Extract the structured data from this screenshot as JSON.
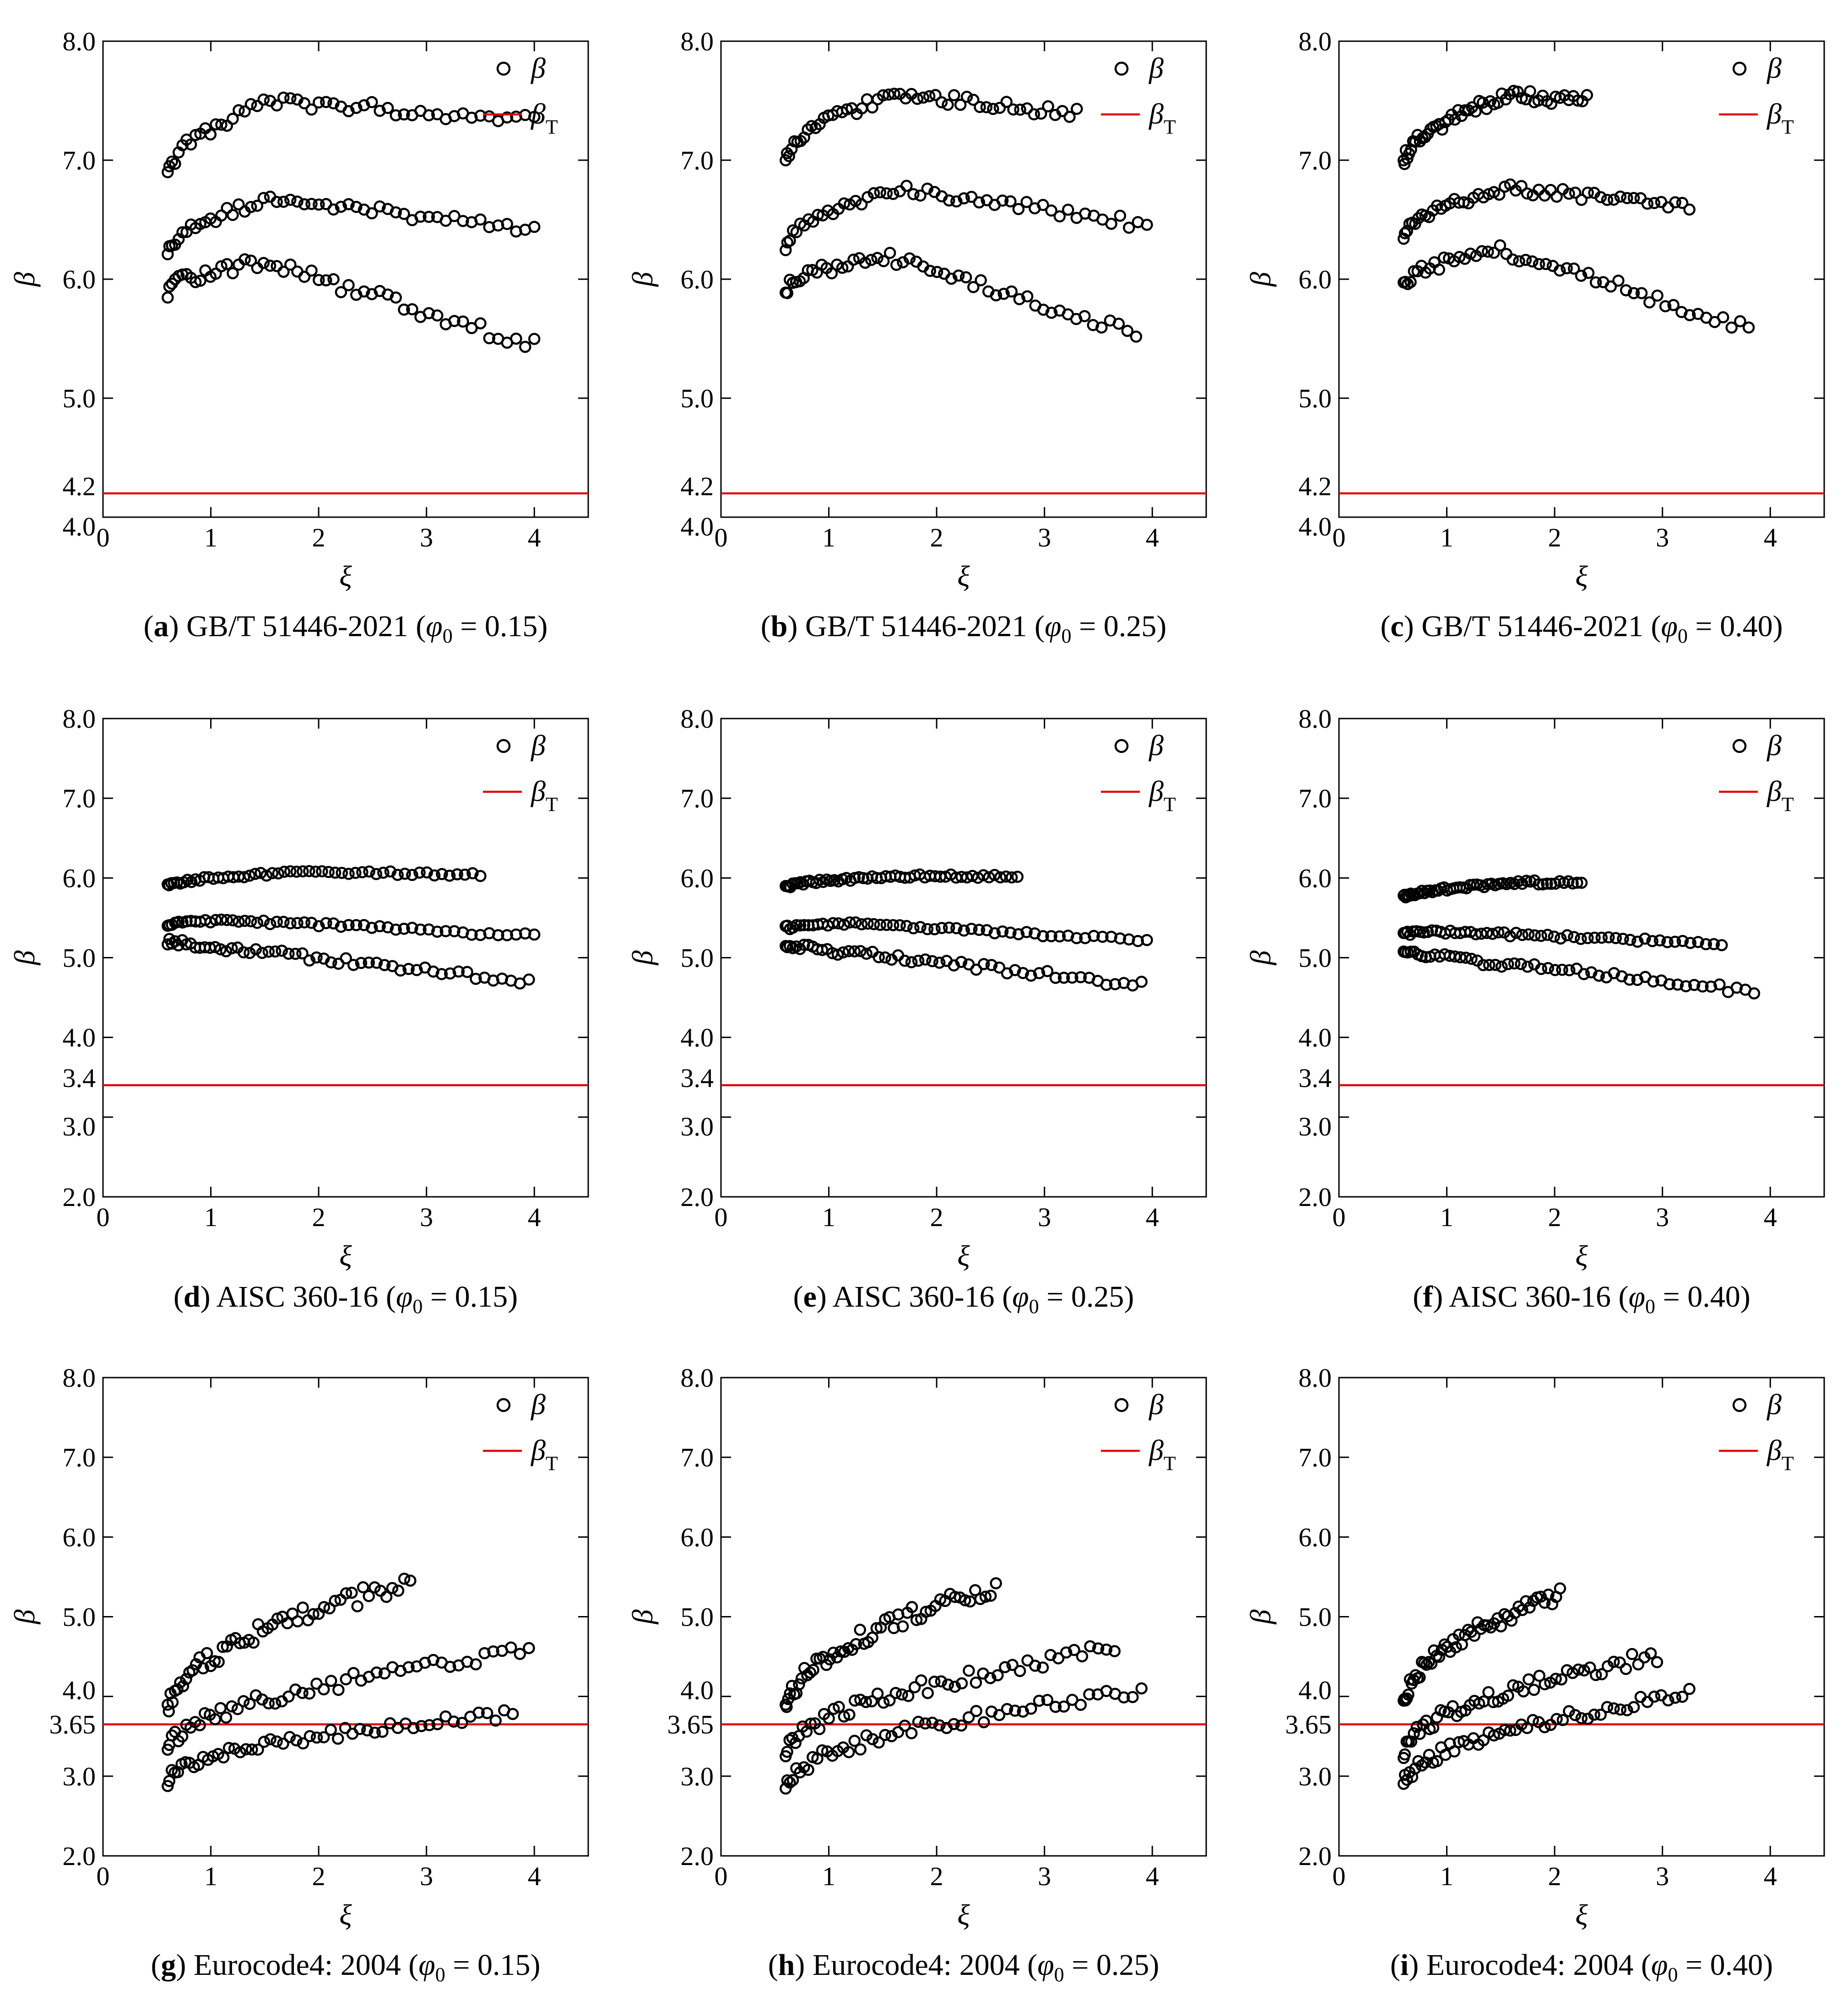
{
  "figure": {
    "legend": {
      "beta_label": "β",
      "beta_t_label": "β",
      "beta_t_sub": "T"
    },
    "x_title": "ξ",
    "y_title": "β",
    "colors": {
      "points": "#000000",
      "target_line": "#e00000"
    }
  },
  "chart_data": [
    {
      "type": "scatter",
      "id": "a",
      "caption": {
        "letter": "a",
        "code": "GB/T 51446-2021",
        "phi_symbol": "φ",
        "phi_sub": "0",
        "phi_value": "0.15"
      },
      "xlim": [
        0,
        4.5
      ],
      "ylim": [
        4.0,
        8.0
      ],
      "x_ticks": [
        "0",
        "1",
        "2",
        "3",
        "4"
      ],
      "y_ticks": [
        "4.0",
        "5.0",
        "6.0",
        "7.0",
        "8.0"
      ],
      "target": {
        "value": 4.2,
        "label": "4.2"
      },
      "series": [
        {
          "x0": 0.6,
          "x1": 4.0,
          "ymax": 7.55,
          "ypeak": 1.55,
          "y0": 6.9,
          "yend": 7.4
        },
        {
          "x0": 0.6,
          "x1": 4.0,
          "ymax": 6.72,
          "ypeak": 1.6,
          "y0": 6.25,
          "yend": 6.45
        },
        {
          "x0": 0.6,
          "x1": 4.0,
          "ymax": 6.2,
          "ypeak": 1.5,
          "y0": 5.95,
          "yend": 5.5
        }
      ]
    },
    {
      "type": "scatter",
      "id": "b",
      "caption": {
        "letter": "b",
        "code": "GB/T 51446-2021",
        "phi_symbol": "φ",
        "phi_sub": "0",
        "phi_value": "0.25"
      },
      "xlim": [
        0,
        4.5
      ],
      "ylim": [
        4.0,
        8.0
      ],
      "x_ticks": [
        "0",
        "1",
        "2",
        "3",
        "4"
      ],
      "y_ticks": [
        "4.0",
        "5.0",
        "6.0",
        "7.0",
        "8.0"
      ],
      "target": {
        "value": 4.2,
        "label": "4.2"
      },
      "series": [
        {
          "x0": 0.6,
          "x1": 3.3,
          "ymax": 7.6,
          "ypeak": 1.6,
          "y0": 7.0,
          "yend": 7.45
        },
        {
          "x0": 0.6,
          "x1": 3.95,
          "ymax": 6.8,
          "ypeak": 1.7,
          "y0": 6.3,
          "yend": 6.5
        },
        {
          "x0": 0.6,
          "x1": 3.85,
          "ymax": 6.25,
          "ypeak": 1.5,
          "y0": 5.95,
          "yend": 5.6
        }
      ]
    },
    {
      "type": "scatter",
      "id": "c",
      "caption": {
        "letter": "c",
        "code": "GB/T 51446-2021",
        "phi_symbol": "φ",
        "phi_sub": "0",
        "phi_value": "0.40"
      },
      "xlim": [
        0,
        4.5
      ],
      "ylim": [
        4.0,
        8.0
      ],
      "x_ticks": [
        "0",
        "1",
        "2",
        "3",
        "4"
      ],
      "y_ticks": [
        "4.0",
        "5.0",
        "6.0",
        "7.0",
        "8.0"
      ],
      "target": {
        "value": 4.2,
        "label": "4.2"
      },
      "series": [
        {
          "x0": 0.6,
          "x1": 2.3,
          "ymax": 7.6,
          "ypeak": 1.6,
          "y0": 7.0,
          "yend": 7.55
        },
        {
          "x0": 0.6,
          "x1": 3.25,
          "ymax": 6.8,
          "ypeak": 1.6,
          "y0": 6.4,
          "yend": 6.65
        },
        {
          "x0": 0.6,
          "x1": 3.8,
          "ymax": 6.3,
          "ypeak": 1.5,
          "y0": 6.0,
          "yend": 5.65
        }
      ]
    },
    {
      "type": "scatter",
      "id": "d",
      "caption": {
        "letter": "d",
        "code": "AISC 360-16",
        "phi_symbol": "φ",
        "phi_sub": "0",
        "phi_value": "0.15"
      },
      "xlim": [
        0,
        4.5
      ],
      "ylim": [
        2.0,
        8.0
      ],
      "x_ticks": [
        "0",
        "1",
        "2",
        "3",
        "4"
      ],
      "y_ticks": [
        "2.0",
        "3.0",
        "4.0",
        "5.0",
        "6.0",
        "7.0",
        "8.0"
      ],
      "target": {
        "value": 3.4,
        "label": "3.4"
      },
      "series": [
        {
          "x0": 0.6,
          "x1": 3.5,
          "ymax": 6.1,
          "ypeak": 1.8,
          "y0": 5.92,
          "yend": 6.07
        },
        {
          "x0": 0.6,
          "x1": 4.0,
          "ymax": 5.5,
          "ypeak": 1.2,
          "y0": 5.45,
          "yend": 5.3
        },
        {
          "x0": 0.6,
          "x1": 3.95,
          "ymax": 5.25,
          "ypeak": 0.6,
          "y0": 5.25,
          "yend": 4.75
        }
      ]
    },
    {
      "type": "scatter",
      "id": "e",
      "caption": {
        "letter": "e",
        "code": "AISC 360-16",
        "phi_symbol": "φ",
        "phi_sub": "0",
        "phi_value": "0.25"
      },
      "xlim": [
        0,
        4.5
      ],
      "ylim": [
        2.0,
        8.0
      ],
      "x_ticks": [
        "0",
        "1",
        "2",
        "3",
        "4"
      ],
      "y_ticks": [
        "2.0",
        "3.0",
        "4.0",
        "5.0",
        "6.0",
        "7.0",
        "8.0"
      ],
      "target": {
        "value": 3.4,
        "label": "3.4"
      },
      "series": [
        {
          "x0": 0.6,
          "x1": 2.75,
          "ymax": 6.05,
          "ypeak": 1.7,
          "y0": 5.9,
          "yend": 6.05
        },
        {
          "x0": 0.6,
          "x1": 3.95,
          "ymax": 5.45,
          "ypeak": 1.2,
          "y0": 5.4,
          "yend": 5.25
        },
        {
          "x0": 0.6,
          "x1": 3.9,
          "ymax": 5.2,
          "ypeak": 0.6,
          "y0": 5.2,
          "yend": 4.7
        }
      ]
    },
    {
      "type": "scatter",
      "id": "f",
      "caption": {
        "letter": "f",
        "code": "AISC 360-16",
        "phi_symbol": "φ",
        "phi_sub": "0",
        "phi_value": "0.40"
      },
      "xlim": [
        0,
        4.5
      ],
      "ylim": [
        2.0,
        8.0
      ],
      "x_ticks": [
        "0",
        "1",
        "2",
        "3",
        "4"
      ],
      "y_ticks": [
        "2.0",
        "3.0",
        "4.0",
        "5.0",
        "6.0",
        "7.0",
        "8.0"
      ],
      "target": {
        "value": 3.4,
        "label": "3.4"
      },
      "series": [
        {
          "x0": 0.6,
          "x1": 2.25,
          "ymax": 5.97,
          "ypeak": 1.8,
          "y0": 5.78,
          "yend": 5.97
        },
        {
          "x0": 0.6,
          "x1": 3.55,
          "ymax": 5.35,
          "ypeak": 1.0,
          "y0": 5.32,
          "yend": 5.2
        },
        {
          "x0": 0.6,
          "x1": 3.85,
          "ymax": 5.1,
          "ypeak": 0.6,
          "y0": 5.1,
          "yend": 4.62
        }
      ]
    },
    {
      "type": "scatter",
      "id": "g",
      "caption": {
        "letter": "g",
        "code": "Eurocode4: 2004",
        "phi_symbol": "φ",
        "phi_sub": "0",
        "phi_value": "0.15"
      },
      "xlim": [
        0,
        4.5
      ],
      "ylim": [
        2.0,
        8.0
      ],
      "x_ticks": [
        "0",
        "1",
        "2",
        "3",
        "4"
      ],
      "y_ticks": [
        "2.0",
        "3.0",
        "3.65",
        "4.0",
        "5.0",
        "6.0",
        "7.0",
        "8.0"
      ],
      "target": {
        "value": 3.65,
        "label": "3.65"
      },
      "series": [
        {
          "x0": 0.6,
          "x1": 2.85,
          "ymax": 5.55,
          "ypeak": 2.85,
          "y0": 3.9,
          "yend": 5.55
        },
        {
          "x0": 0.6,
          "x1": 3.95,
          "ymax": 4.65,
          "ypeak": 3.95,
          "y0": 3.4,
          "yend": 4.65
        },
        {
          "x0": 0.6,
          "x1": 3.8,
          "ymax": 3.85,
          "ypeak": 3.8,
          "y0": 3.0,
          "yend": 3.85
        }
      ]
    },
    {
      "type": "scatter",
      "id": "h",
      "caption": {
        "letter": "h",
        "code": "Eurocode4: 2004",
        "phi_symbol": "φ",
        "phi_sub": "0",
        "phi_value": "0.25"
      },
      "xlim": [
        0,
        4.5
      ],
      "ylim": [
        2.0,
        8.0
      ],
      "x_ticks": [
        "0",
        "1",
        "2",
        "3",
        "4"
      ],
      "y_ticks": [
        "2.0",
        "3.0",
        "3.65",
        "4.0",
        "5.0",
        "6.0",
        "7.0",
        "8.0"
      ],
      "target": {
        "value": 3.65,
        "label": "3.65"
      },
      "series": [
        {
          "x0": 0.6,
          "x1": 2.55,
          "ymax": 5.48,
          "ypeak": 2.55,
          "y0": 3.9,
          "yend": 5.48
        },
        {
          "x0": 0.6,
          "x1": 3.65,
          "ymax": 4.68,
          "ypeak": 3.65,
          "y0": 3.35,
          "yend": 4.68
        },
        {
          "x0": 0.6,
          "x1": 3.9,
          "ymax": 4.15,
          "ypeak": 3.9,
          "y0": 2.95,
          "yend": 4.15
        }
      ]
    },
    {
      "type": "scatter",
      "id": "i",
      "caption": {
        "letter": "i",
        "code": "Eurocode4: 2004",
        "phi_symbol": "φ",
        "phi_sub": "0",
        "phi_value": "0.40"
      },
      "xlim": [
        0,
        4.5
      ],
      "ylim": [
        2.0,
        8.0
      ],
      "x_ticks": [
        "0",
        "1",
        "2",
        "3",
        "4"
      ],
      "y_ticks": [
        "2.0",
        "3.0",
        "3.65",
        "4.0",
        "5.0",
        "6.0",
        "7.0",
        "8.0"
      ],
      "target": {
        "value": 3.65,
        "label": "3.65"
      },
      "series": [
        {
          "x0": 0.6,
          "x1": 2.05,
          "ymax": 5.38,
          "ypeak": 2.05,
          "y0": 3.95,
          "yend": 5.38
        },
        {
          "x0": 0.6,
          "x1": 2.95,
          "ymax": 4.6,
          "ypeak": 2.95,
          "y0": 3.35,
          "yend": 4.6
        },
        {
          "x0": 0.6,
          "x1": 3.25,
          "ymax": 4.1,
          "ypeak": 3.25,
          "y0": 2.95,
          "yend": 4.1
        }
      ]
    }
  ]
}
